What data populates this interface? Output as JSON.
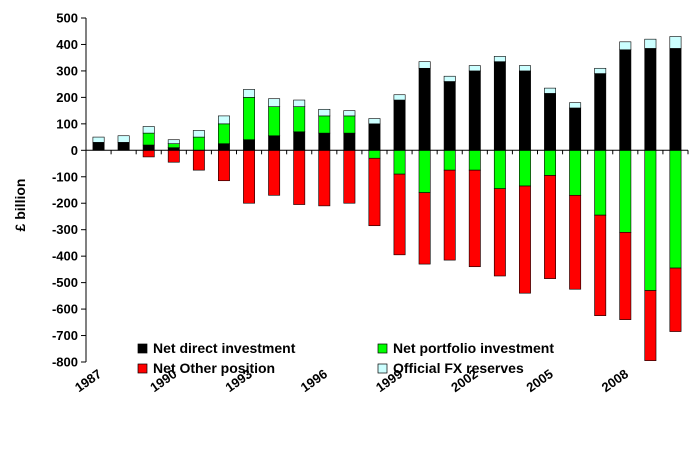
{
  "chart_data": {
    "type": "bar",
    "stacked": true,
    "ylabel": "£ billion",
    "ylim": [
      -800,
      500
    ],
    "yticks": [
      500,
      400,
      300,
      200,
      100,
      0,
      -100,
      -200,
      -300,
      -400,
      -500,
      -600,
      -700,
      -800
    ],
    "grid": false,
    "legend_position": "bottom-center",
    "categories": [
      "1987",
      "1988",
      "1989",
      "1990",
      "1991",
      "1992",
      "1993",
      "1994",
      "1995",
      "1996",
      "1997",
      "1998",
      "1999",
      "2000",
      "2001",
      "2002",
      "2003",
      "2004",
      "2005",
      "2006",
      "2007",
      "2008",
      "2009",
      "2010"
    ],
    "x_tick_labels": [
      "1987",
      "1990",
      "1993",
      "1996",
      "1999",
      "2002",
      "2005",
      "2008"
    ],
    "x_tick_categories": [
      "1987",
      "1990",
      "1993",
      "1996",
      "1999",
      "2002",
      "2005",
      "2008"
    ],
    "series": [
      {
        "name": "Net direct investment",
        "color": "#000000",
        "values": [
          30,
          30,
          20,
          10,
          0,
          25,
          40,
          55,
          70,
          65,
          65,
          100,
          190,
          310,
          260,
          300,
          335,
          300,
          215,
          160,
          290,
          380,
          385,
          385
        ]
      },
      {
        "name": "Net portfolio investment",
        "color": "#00ff00",
        "values": [
          0,
          0,
          45,
          15,
          50,
          75,
          160,
          110,
          95,
          65,
          65,
          -30,
          -90,
          -160,
          -75,
          -75,
          -145,
          -135,
          -95,
          -170,
          -245,
          -310,
          -530,
          -445
        ]
      },
      {
        "name": "Net Other position",
        "color": "#ff0000",
        "values": [
          0,
          0,
          -25,
          -45,
          -75,
          -115,
          -200,
          -170,
          -205,
          -210,
          -200,
          -255,
          -305,
          -270,
          -340,
          -365,
          -330,
          -405,
          -390,
          -355,
          -380,
          -330,
          -265,
          -240
        ]
      },
      {
        "name": "Official FX reserves",
        "color": "#ccffff",
        "values": [
          20,
          25,
          25,
          15,
          25,
          30,
          30,
          30,
          25,
          25,
          20,
          20,
          20,
          25,
          20,
          20,
          20,
          20,
          20,
          20,
          20,
          30,
          35,
          45
        ]
      }
    ]
  }
}
